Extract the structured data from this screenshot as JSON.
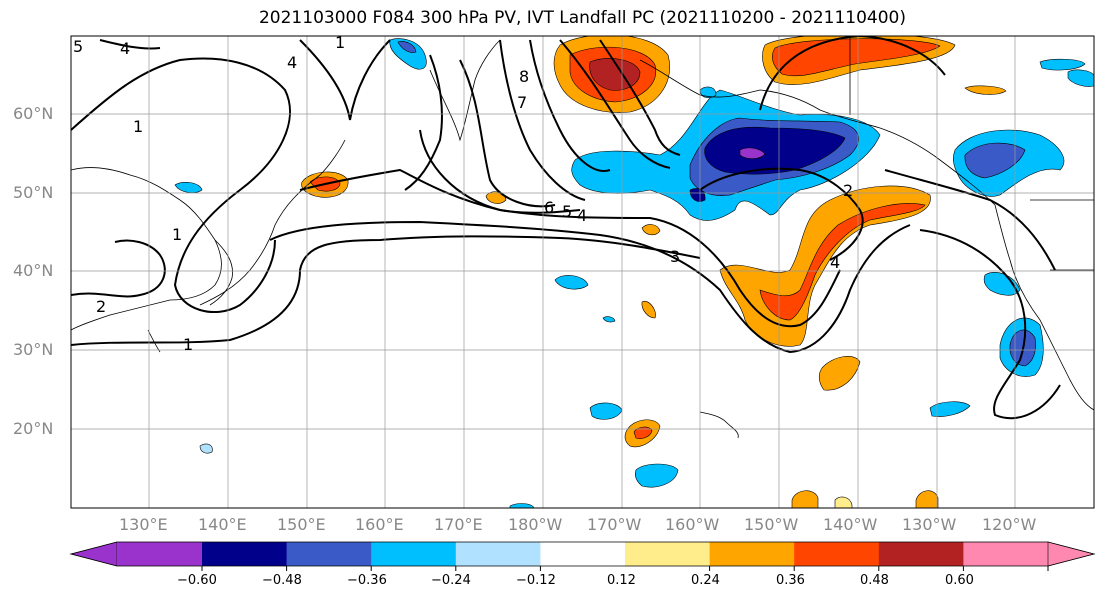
{
  "title": "2021103000 F084 300 hPa PV, IVT Landfall PC (2021110200 - 2021110400)",
  "lat_labels": [
    "60°N",
    "50°N",
    "40°N",
    "30°N",
    "20°N"
  ],
  "lon_labels": [
    "130°E",
    "140°E",
    "150°E",
    "160°E",
    "170°E",
    "180°W",
    "170°W",
    "160°W",
    "150°W",
    "140°W",
    "130°W",
    "120°W"
  ],
  "colorbar": {
    "colors": [
      "#9933cc",
      "#00008b",
      "#3a5bc7",
      "#00bfff",
      "#b0e2ff",
      "#ffffff",
      "#ffec8b",
      "#ffa500",
      "#ff4500",
      "#b22222",
      "#ff88b0"
    ],
    "tick_labels": [
      "−0.60",
      "−0.48",
      "−0.36",
      "−0.24",
      "−0.12",
      "0.12",
      "0.24",
      "0.36",
      "0.48",
      "0.60"
    ]
  },
  "contour_labels": [
    "4",
    "4",
    "1",
    "1",
    "2",
    "8",
    "7",
    "6",
    "5",
    "4",
    "3",
    "4",
    "2",
    "5",
    "1",
    "1"
  ]
}
